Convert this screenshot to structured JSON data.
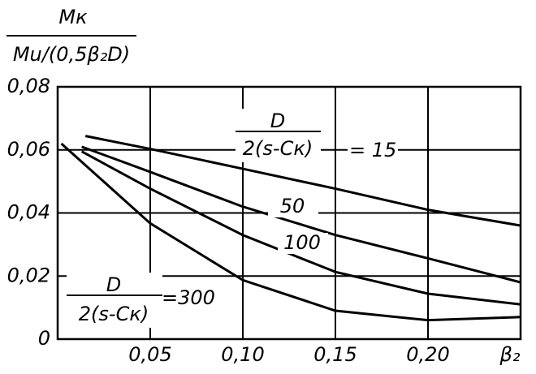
{
  "chart_data": {
    "type": "line",
    "y_label": {
      "numerator": "Mк",
      "denominator": "Mu/(0,5β₂D)"
    },
    "x_label": "β₂",
    "annotations": [
      {
        "numerator": "D",
        "denominator": "2(s-Cк)"
      },
      {
        "numerator": "D",
        "denominator": "2(s-Cк)"
      }
    ],
    "series": [
      {
        "name": "= 15",
        "color": "#000000",
        "x": [
          0.015,
          0.05,
          0.1,
          0.15,
          0.2,
          0.25
        ],
        "values": [
          0.0644,
          0.0603,
          0.054,
          0.0477,
          0.041,
          0.036
        ]
      },
      {
        "name": "50",
        "color": "#000000",
        "x": [
          0.013,
          0.05,
          0.1,
          0.15,
          0.2,
          0.25
        ],
        "values": [
          0.061,
          0.053,
          0.042,
          0.033,
          0.0256,
          0.018
        ]
      },
      {
        "name": "100",
        "color": "#000000",
        "x": [
          0.013,
          0.05,
          0.1,
          0.15,
          0.2,
          0.25
        ],
        "values": [
          0.0595,
          0.0477,
          0.033,
          0.0213,
          0.0144,
          0.011
        ]
      },
      {
        "name": "=300",
        "color": "#000000",
        "x": [
          0.002,
          0.05,
          0.1,
          0.15,
          0.2,
          0.25
        ],
        "values": [
          0.062,
          0.0367,
          0.0187,
          0.009,
          0.006,
          0.007
        ]
      }
    ],
    "xlim": [
      0,
      0.25
    ],
    "ylim": [
      0,
      0.08
    ],
    "xticks": [
      {
        "value": 0.05,
        "label": "0,05"
      },
      {
        "value": 0.1,
        "label": "0,10"
      },
      {
        "value": 0.15,
        "label": "0,15"
      },
      {
        "value": 0.2,
        "label": "0,20"
      }
    ],
    "yticks": [
      0,
      {
        "value": 0.02,
        "label": "0,02"
      },
      {
        "value": 0.04,
        "label": "0,04"
      },
      {
        "value": 0.06,
        "label": "0,06"
      },
      {
        "value": 0.08,
        "label": "0,08"
      }
    ],
    "grid": true
  }
}
